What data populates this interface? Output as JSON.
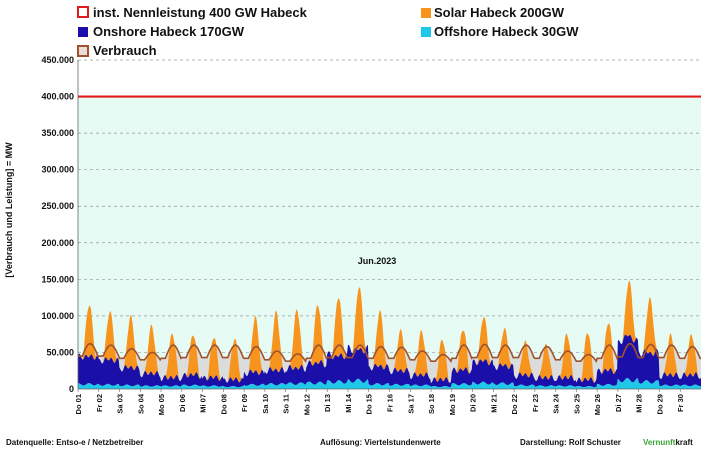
{
  "chart_data": {
    "type": "area",
    "ylabel": "[Verbrauch und Leistung] = MW",
    "xlabel": "Jun.2023",
    "ylim": [
      0,
      450000
    ],
    "y_ticks": [
      0,
      50000,
      100000,
      150000,
      200000,
      250000,
      300000,
      350000,
      400000,
      450000
    ],
    "y_tick_labels": [
      "0",
      "50.000",
      "100.000",
      "150.000",
      "200.000",
      "250.000",
      "300.000",
      "350.000",
      "400.000",
      "450.000"
    ],
    "x_tick_labels": [
      "Do 01",
      "Fr 02",
      "Sa 03",
      "So 04",
      "Mo 05",
      "Di 06",
      "Mi 07",
      "Do 08",
      "Fr 09",
      "Sa 10",
      "So 11",
      "Mo 12",
      "Di 13",
      "Mi 14",
      "Do 15",
      "Fr 16",
      "Sa 17",
      "So 18",
      "Mo 19",
      "Di 20",
      "Mi 21",
      "Do 22",
      "Fr 23",
      "Sa 24",
      "So 25",
      "Mo 26",
      "Di 27",
      "Mi 28",
      "Do 29",
      "Fr 30"
    ],
    "grid": "horizontal-dashed",
    "legend_position": "top",
    "capacity_line": {
      "name": "inst. Nennleistung 400 GW Habeck",
      "value": 400000,
      "color": "#e31a1c"
    },
    "series": [
      {
        "name": "Offshore Habeck 30GW",
        "color": "#1fc8e8",
        "kind": "stacked-area"
      },
      {
        "name": "Onshore Habeck 170GW",
        "color": "#1a0fa8",
        "kind": "stacked-area"
      },
      {
        "name": "Solar Habeck 200GW",
        "color": "#f7941d",
        "kind": "stacked-area"
      },
      {
        "name": "Verbrauch",
        "color": "#a0522d",
        "kind": "line"
      }
    ],
    "daily": {
      "days": [
        "Do 01",
        "Fr 02",
        "Sa 03",
        "So 04",
        "Mo 05",
        "Di 06",
        "Mi 07",
        "Do 08",
        "Fr 09",
        "Sa 10",
        "So 11",
        "Mo 12",
        "Di 13",
        "Mi 14",
        "Do 15",
        "Fr 16",
        "Sa 17",
        "So 18",
        "Mo 19",
        "Di 20",
        "Mi 21",
        "Do 22",
        "Fr 23",
        "Sa 24",
        "So 25",
        "Mo 26",
        "Di 27",
        "Mi 28",
        "Do 29",
        "Fr 30"
      ],
      "solar_peak": [
        70000,
        65000,
        70000,
        65000,
        60000,
        55000,
        55000,
        55000,
        75000,
        80000,
        80000,
        80000,
        80000,
        85000,
        75000,
        55000,
        60000,
        55000,
        55000,
        60000,
        50000,
        45000,
        45000,
        60000,
        65000,
        65000,
        75000,
        75000,
        55000,
        55000
      ],
      "onshore_day": [
        38000,
        35000,
        25000,
        18000,
        12000,
        15000,
        12000,
        10000,
        18000,
        20000,
        22000,
        28000,
        35000,
        42000,
        25000,
        20000,
        15000,
        10000,
        20000,
        30000,
        25000,
        15000,
        12000,
        12000,
        10000,
        20000,
        60000,
        40000,
        15000,
        15000
      ],
      "onshore_night": [
        38000,
        32000,
        22000,
        15000,
        10000,
        12000,
        10000,
        8000,
        15000,
        18000,
        20000,
        25000,
        38000,
        45000,
        22000,
        18000,
        12000,
        8000,
        18000,
        28000,
        22000,
        12000,
        10000,
        10000,
        8000,
        18000,
        50000,
        40000,
        12000,
        12000
      ],
      "offshore": [
        8000,
        7000,
        6000,
        5000,
        5000,
        6000,
        5000,
        4000,
        7000,
        8000,
        9000,
        10000,
        12000,
        14000,
        8000,
        7000,
        6000,
        4000,
        8000,
        10000,
        9000,
        6000,
        5000,
        5000,
        4000,
        7000,
        15000,
        12000,
        6000,
        6000
      ],
      "load_day": [
        62000,
        60000,
        55000,
        50000,
        60000,
        60000,
        60000,
        60000,
        58000,
        52000,
        48000,
        60000,
        60000,
        60000,
        58000,
        57000,
        52000,
        47000,
        60000,
        61000,
        60000,
        60000,
        58000,
        52000,
        47000,
        60000,
        62000,
        61000,
        60000,
        58000
      ],
      "load_night": [
        45000,
        45000,
        42000,
        40000,
        42000,
        43000,
        43000,
        43000,
        42000,
        40000,
        38000,
        42000,
        43000,
        43000,
        42000,
        42000,
        40000,
        38000,
        42000,
        43000,
        43000,
        43000,
        42000,
        40000,
        38000,
        42000,
        44000,
        43000,
        43000,
        42000
      ]
    }
  },
  "legend": {
    "nenn": "inst. Nennleistung 400 GW Habeck",
    "solar": "Solar Habeck 200GW",
    "onshore": "Onshore Habeck 170GW",
    "offshore": "Offshore Habeck 30GW",
    "verbrauch": "Verbrauch"
  },
  "colors": {
    "nenn": "#e31a1c",
    "solar": "#f7941d",
    "onshore": "#1a0fa8",
    "offshore": "#1fc8e8",
    "verbrauch": "#a0522d",
    "plot_fill": "#e6fbf3",
    "deficit_fill": "#d9d9d9"
  },
  "footer": {
    "source": "Datenquelle: Entso-e  / Netzbetreiber",
    "resolution": "Auflösung: Viertelstundenwerte",
    "author": "Darstellung:  Rolf Schuster",
    "brand_part1": "Vernunft",
    "brand_part2": "kraft",
    "brand_color1": "#3aa635",
    "brand_color2": "#111111"
  }
}
